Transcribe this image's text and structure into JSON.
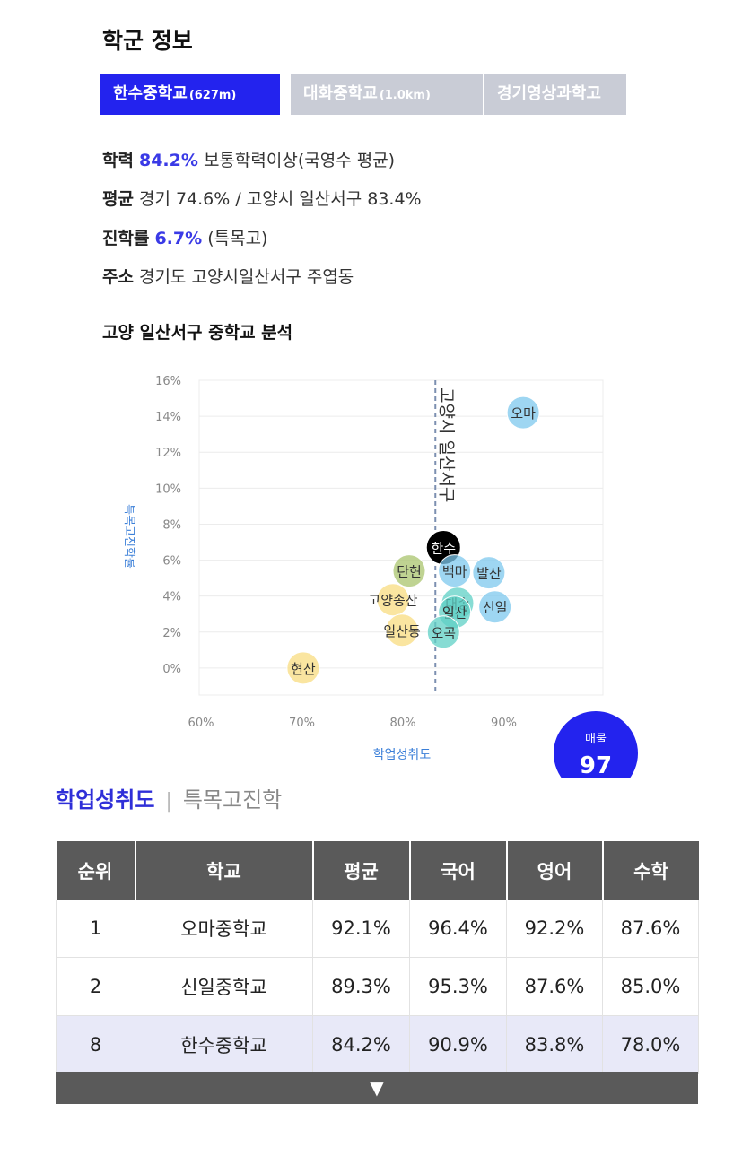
{
  "section_title": "학군 정보",
  "tabs": [
    {
      "name": "한수중학교",
      "distance": "(627m)"
    },
    {
      "name": "대화중학교",
      "distance": "(1.0km)"
    },
    {
      "name": "경기영상과학고",
      "distance": ""
    }
  ],
  "info": {
    "academic": {
      "label": "학력",
      "value": "84.2%",
      "desc": "보통학력이상(국영수 평균)"
    },
    "average": {
      "label": "평균",
      "text": "경기 74.6% / 고양시 일산서구 83.4%"
    },
    "advancement": {
      "label": "진학률",
      "value": "6.7%",
      "desc": "(특목고)"
    },
    "address": {
      "label": "주소",
      "text": "경기도 고양시일산서구 주엽동"
    }
  },
  "analysis_title": "고양 일산서구 중학교 분석",
  "chart_data": {
    "type": "scatter",
    "xlabel": "학업성취도",
    "ylabel": "특목고진학률",
    "xlim": [
      60,
      100
    ],
    "ylim": [
      -1.5,
      16
    ],
    "x_ticks": [
      "60%",
      "70%",
      "80%",
      "90%"
    ],
    "y_ticks": [
      "0%",
      "2%",
      "4%",
      "6%",
      "8%",
      "10%",
      "12%",
      "14%",
      "16%"
    ],
    "reference_line": {
      "x": 83.4,
      "label": "고양시 일산서구"
    },
    "points": [
      {
        "name": "오마",
        "x": 92.1,
        "y": 14.2,
        "color": "#7dc8ee"
      },
      {
        "name": "한수",
        "x": 84.2,
        "y": 6.7,
        "color": "#000000"
      },
      {
        "name": "탄현",
        "x": 80.8,
        "y": 5.4,
        "color": "#a9c46e"
      },
      {
        "name": "백마",
        "x": 85.3,
        "y": 5.4,
        "color": "#7dc8ee"
      },
      {
        "name": "발산",
        "x": 88.7,
        "y": 5.3,
        "color": "#7dc8ee"
      },
      {
        "name": "신일",
        "x": 89.3,
        "y": 3.4,
        "color": "#7dc8ee"
      },
      {
        "name": "대송",
        "x": 85.6,
        "y": 3.6,
        "color": "#5fd0c6"
      },
      {
        "name": "일산",
        "x": 85.3,
        "y": 3.1,
        "color": "#5fd0c6"
      },
      {
        "name": "고양송산",
        "x": 79.2,
        "y": 3.8,
        "color": "#f8dc80"
      },
      {
        "name": "일산동",
        "x": 80.1,
        "y": 2.1,
        "color": "#f8dc80"
      },
      {
        "name": "오곡",
        "x": 84.2,
        "y": 2.0,
        "color": "#5fd0c6"
      },
      {
        "name": "현산",
        "x": 70.3,
        "y": 0.0,
        "color": "#f8dc80"
      }
    ]
  },
  "badge": {
    "label": "매물",
    "value": "97"
  },
  "subtabs": {
    "active": "학업성취도",
    "inactive": "특목고진학"
  },
  "table": {
    "headers": [
      "순위",
      "학교",
      "평균",
      "국어",
      "영어",
      "수학"
    ],
    "rows": [
      [
        "1",
        "오마중학교",
        "92.1%",
        "96.4%",
        "92.2%",
        "87.6%"
      ],
      [
        "2",
        "신일중학교",
        "89.3%",
        "95.3%",
        "87.6%",
        "85.0%"
      ],
      [
        "8",
        "한수중학교",
        "84.2%",
        "90.9%",
        "83.8%",
        "78.0%"
      ]
    ],
    "highlight_row": 2
  },
  "more_icon": "triangle-down-icon"
}
